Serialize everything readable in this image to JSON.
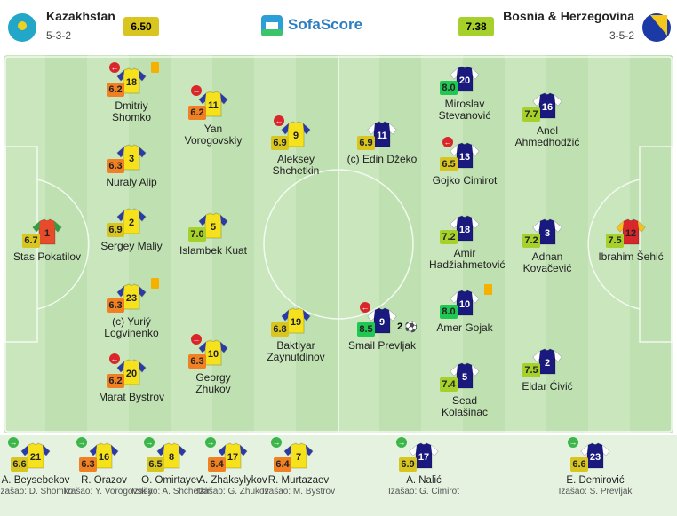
{
  "header": {
    "home": {
      "name": "Kazakhstan",
      "formation": "5-3-2",
      "rating": "6.50"
    },
    "brand": "SofaScore",
    "away": {
      "name": "Bosnia & Herzegovina",
      "formation": "3-5-2",
      "rating": "7.38"
    }
  },
  "lineup": {
    "home": [
      {
        "number": 1,
        "name": "Stas Pokatilov",
        "rating": "6.7",
        "gk": true,
        "events": []
      },
      {
        "number": 18,
        "name": "Dmitriy Shomko",
        "rating": "6.2",
        "events": [
          "sub_off",
          "yellow_card"
        ]
      },
      {
        "number": 3,
        "name": "Nuraly Alip",
        "rating": "6.3",
        "events": []
      },
      {
        "number": 2,
        "name": "Sergey Maliy",
        "rating": "6.9",
        "events": []
      },
      {
        "number": 23,
        "name": "(c) Yuriý Logvinenko",
        "rating": "6.3",
        "events": [
          "yellow_card"
        ]
      },
      {
        "number": 20,
        "name": "Marat Bystrov",
        "rating": "6.2",
        "events": [
          "sub_off"
        ]
      },
      {
        "number": 11,
        "name": "Yan Vorogovskiy",
        "rating": "6.2",
        "events": [
          "sub_off"
        ]
      },
      {
        "number": 5,
        "name": "Islambek Kuat",
        "rating": "7.0",
        "events": []
      },
      {
        "number": 10,
        "name": "Georgy Zhukov",
        "rating": "6.3",
        "events": [
          "sub_off"
        ]
      },
      {
        "number": 9,
        "name": "Aleksey Shchetkin",
        "rating": "6.9",
        "events": [
          "sub_off"
        ]
      },
      {
        "number": 19,
        "name": "Baktiyar Zaynutdinov",
        "rating": "6.8",
        "events": []
      }
    ],
    "away": [
      {
        "number": 11,
        "name": "(c) Edin Džeko",
        "rating": "6.9",
        "events": []
      },
      {
        "number": 9,
        "name": "Smail Prevljak",
        "rating": "8.5",
        "events": [
          "sub_off"
        ],
        "goals": 2
      },
      {
        "number": 20,
        "name": "Miroslav Stevanović",
        "rating": "8.0",
        "events": []
      },
      {
        "number": 13,
        "name": "Gojko Cimirot",
        "rating": "6.5",
        "events": [
          "sub_off"
        ]
      },
      {
        "number": 18,
        "name": "Amir Hadžiahmetović",
        "rating": "7.2",
        "events": []
      },
      {
        "number": 10,
        "name": "Amer Gojak",
        "rating": "8.0",
        "events": [
          "yellow_card"
        ]
      },
      {
        "number": 5,
        "name": "Sead Kolašinac",
        "rating": "7.4",
        "events": []
      },
      {
        "number": 16,
        "name": "Anel Ahmedhodžić",
        "rating": "7.7",
        "events": []
      },
      {
        "number": 3,
        "name": "Adnan Kovačević",
        "rating": "7.2",
        "events": []
      },
      {
        "number": 2,
        "name": "Eldar Ćivić",
        "rating": "7.5",
        "events": []
      },
      {
        "number": 12,
        "name": "Ibrahim Šehić",
        "rating": "7.5",
        "gk": true,
        "events": []
      }
    ]
  },
  "substitutes": {
    "home": [
      {
        "number": 21,
        "name": "A. Beysebekov",
        "rating": "6.6",
        "replaced": "Izašao: D. Shomko"
      },
      {
        "number": 16,
        "name": "R. Orazov",
        "rating": "6.3",
        "replaced": "Izašao: Y. Vorogovskiy"
      },
      {
        "number": 8,
        "name": "O. Omirtayev",
        "rating": "6.5",
        "replaced": "Izašao: A. Shchetkin"
      },
      {
        "number": 17,
        "name": "A. Zhaksylykov",
        "rating": "6.4",
        "replaced": "Izašao: G. Zhukov"
      },
      {
        "number": 7,
        "name": "R. Murtazaev",
        "rating": "6.4",
        "replaced": "Izašao: M. Bystrov"
      }
    ],
    "away": [
      {
        "number": 17,
        "name": "A. Nalić",
        "rating": "6.9",
        "replaced": "Izašao: G. Cimirot"
      },
      {
        "number": 23,
        "name": "E. Demirović",
        "rating": "6.6",
        "replaced": "Izašao: S. Prevljak"
      }
    ]
  }
}
